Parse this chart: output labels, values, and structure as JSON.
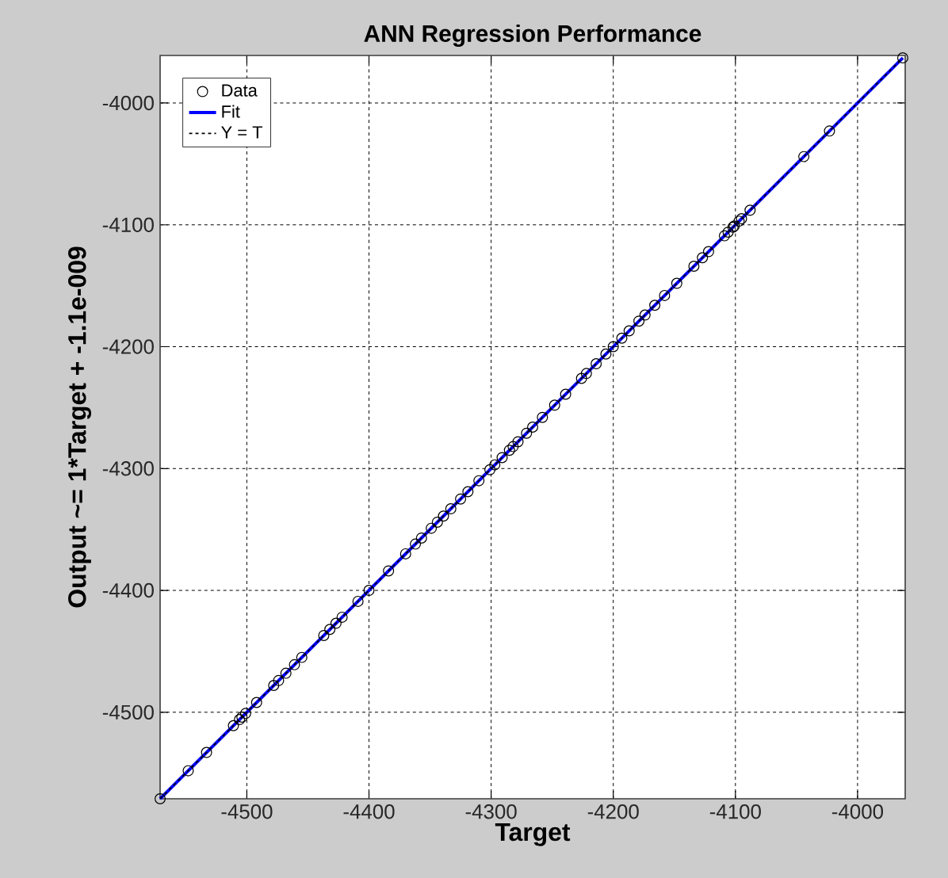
{
  "chart_data": {
    "type": "scatter",
    "title": "ANN Regression Performance",
    "xlabel": "Target",
    "ylabel": "Output ~= 1*Target + -1.1e-009",
    "xlim": [
      -4571,
      -3961
    ],
    "ylim": [
      -4571,
      -3961
    ],
    "xticks": [
      -4500,
      -4400,
      -4300,
      -4200,
      -4100,
      -4000
    ],
    "yticks": [
      -4500,
      -4400,
      -4300,
      -4200,
      -4100,
      -4000
    ],
    "grid": true,
    "legend": "top left",
    "series": [
      {
        "name": "Data",
        "marker": "circle",
        "color": "#000000",
        "x": [
          -4571,
          -4548,
          -4533,
          -4511,
          -4506,
          -4504,
          -4501,
          -4492,
          -4478,
          -4474,
          -4468,
          -4461,
          -4455,
          -4437,
          -4432,
          -4427,
          -4422,
          -4409,
          -4400,
          -4384,
          -4370,
          -4362,
          -4357,
          -4349,
          -4344,
          -4339,
          -4333,
          -4325,
          -4319,
          -4310,
          -4301,
          -4297,
          -4291,
          -4285,
          -4282,
          -4278,
          -4271,
          -4266,
          -4258,
          -4248,
          -4239,
          -4226,
          -4222,
          -4214,
          -4206,
          -4200,
          -4193,
          -4187,
          -4179,
          -4174,
          -4166,
          -4158,
          -4148,
          -4134,
          -4127,
          -4122,
          -4109,
          -4106,
          -4102,
          -4101,
          -4097,
          -4095,
          -4088,
          -4044,
          -4023,
          -3963
        ],
        "values": [
          -4571,
          -4548,
          -4533,
          -4511,
          -4506,
          -4504,
          -4501,
          -4492,
          -4478,
          -4474,
          -4468,
          -4461,
          -4455,
          -4437,
          -4432,
          -4427,
          -4422,
          -4409,
          -4400,
          -4384,
          -4370,
          -4362,
          -4357,
          -4349,
          -4344,
          -4339,
          -4333,
          -4325,
          -4319,
          -4310,
          -4301,
          -4297,
          -4291,
          -4285,
          -4282,
          -4278,
          -4271,
          -4266,
          -4258,
          -4248,
          -4239,
          -4226,
          -4222,
          -4214,
          -4206,
          -4200,
          -4193,
          -4187,
          -4179,
          -4174,
          -4166,
          -4158,
          -4148,
          -4134,
          -4127,
          -4122,
          -4109,
          -4106,
          -4102,
          -4101,
          -4097,
          -4095,
          -4088,
          -4044,
          -4023,
          -3963
        ]
      },
      {
        "name": "Fit",
        "type": "line",
        "marker": "none",
        "line_style": "solid",
        "color": "#0000ff",
        "x": [
          -4571,
          -3963
        ],
        "values": [
          -4571,
          -3963
        ]
      },
      {
        "name": "Y = T",
        "type": "line",
        "marker": "none",
        "line_style": "dotted",
        "color": "#000000",
        "x": [
          -4571,
          -3963
        ],
        "values": [
          -4571,
          -3963
        ]
      }
    ]
  }
}
